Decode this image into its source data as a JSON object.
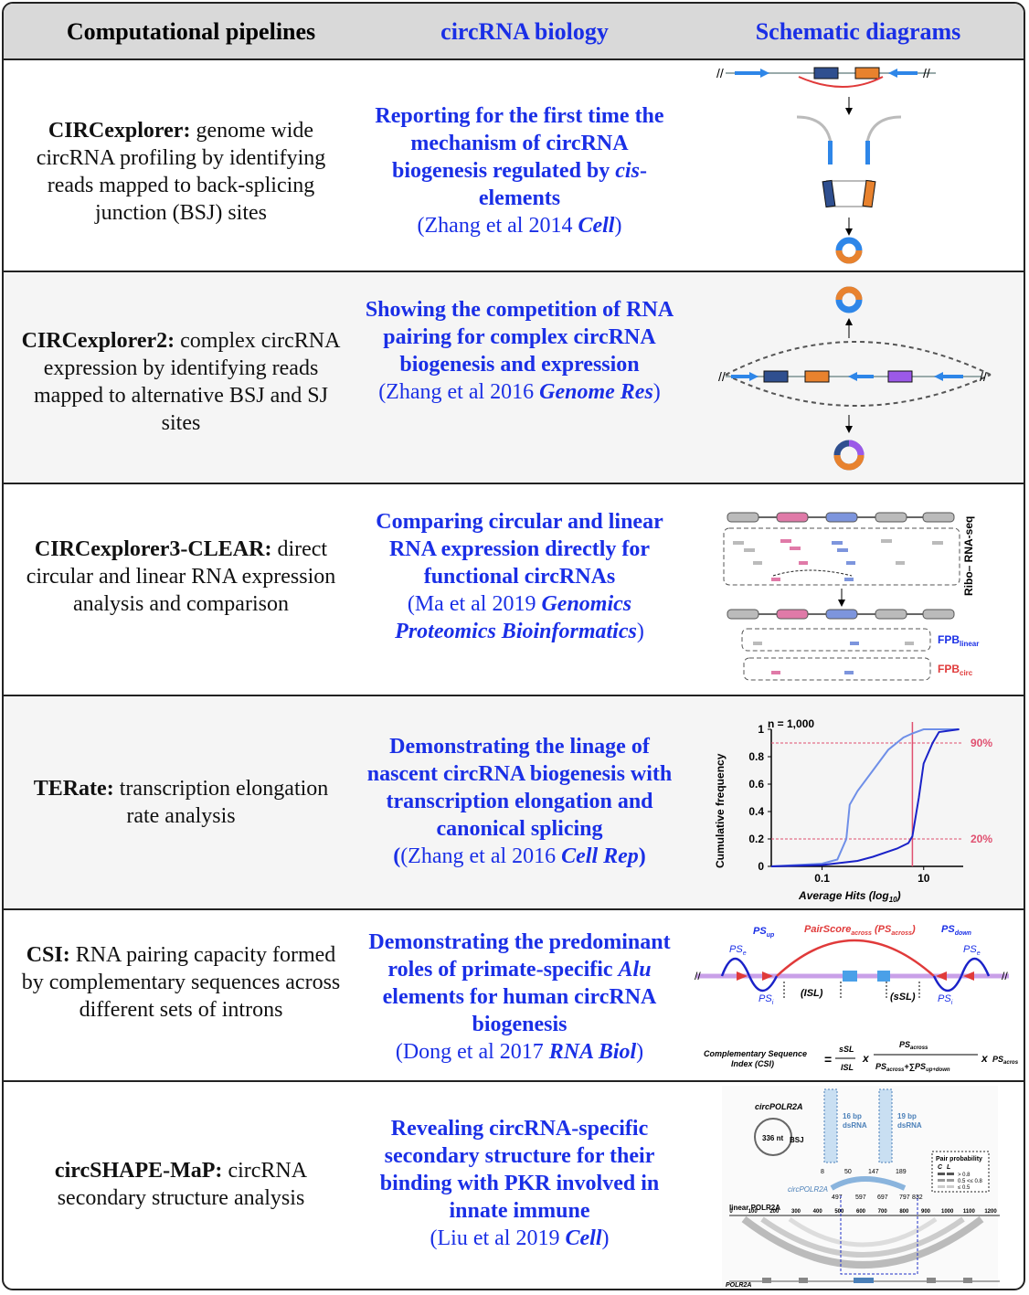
{
  "header": {
    "col1": "Computational pipelines",
    "col2": "circRNA biology",
    "col3": "Schematic diagrams"
  },
  "rows": [
    {
      "tool": "CIRCexplorer:",
      "desc": " genome wide circRNA profiling by identifying reads mapped to back-splicing junction (BSJ) sites",
      "finding_a": "Reporting for the first time the mechanism of circRNA biogenesis regulated by ",
      "finding_em": "cis",
      "finding_b": "-elements",
      "ref_a": "(Zhang et al 2014 ",
      "ref_journal": "Cell",
      "ref_b": ")"
    },
    {
      "tool": "CIRCexplorer2:",
      "desc": " complex circRNA expression by identifying reads mapped to alternative BSJ and SJ sites",
      "finding_a": "Showing the competition of RNA pairing for complex circRNA biogenesis and expression",
      "ref_a": "(Zhang et al 2016 ",
      "ref_journal": "Genome Res",
      "ref_b": ")"
    },
    {
      "tool": "CIRCexplorer3-CLEAR:",
      "desc": " direct circular and linear RNA expression analysis and comparison",
      "finding_a": "Comparing circular and linear RNA expression directly for functional circRNAs",
      "ref_a": "(Ma et al 2019 ",
      "ref_journal": "Genomics Proteomics Bioinformatics",
      "ref_b": ")"
    },
    {
      "tool": "TERate:",
      "desc": " transcription elongation rate analysis",
      "finding_a": "Demonstrating the linage of nascent circRNA biogenesis with transcription elongation and canonical splicing",
      "ref_a": "(Zhang et al 2016 ",
      "ref_journal": "Cell Rep",
      "ref_b": ")"
    },
    {
      "tool": "CSI:",
      "desc": " RNA pairing capacity formed by complementary sequences across different sets of introns",
      "finding_a": "Demonstrating the predominant roles of primate-specific ",
      "finding_em": "Alu",
      "finding_b": " elements for human circRNA biogenesis",
      "ref_a": "(Dong et al 2017 ",
      "ref_journal": "RNA Biol",
      "ref_b": ")"
    },
    {
      "tool": "circSHAPE-MaP:",
      "desc": " circRNA secondary structure analysis",
      "finding_a": "Revealing circRNA-specific secondary structure for their binding with PKR involved in innate immune",
      "ref_a": "(Liu et al 2019 ",
      "ref_journal": "Cell",
      "ref_b": ")"
    }
  ],
  "diagrams": {
    "clear": {
      "side_label": "Ribo– RNA-seq",
      "fpb_linear": "FPB",
      "fpb_linear_sub": "linear",
      "fpb_circ": "FPB",
      "fpb_circ_sub": "circ"
    },
    "terate_chart": {
      "n_label": "n = 1,000",
      "pct_high": "90%",
      "pct_low": "20%"
    },
    "csi": {
      "ps_up": "PS",
      "ps_up_sub": "up",
      "ps_across": "PairScore",
      "ps_across_sub": "across",
      "ps_across_b": " (PS",
      "ps_across_b_sub": "across",
      "ps_across_c": ")",
      "ps_down": "PS",
      "ps_down_sub": "down",
      "ps_e": "PS",
      "ps_e_sub": "e",
      "ps_i": "PS",
      "ps_i_sub": "i",
      "isl": "(ISL)",
      "ssl": "(sSL)",
      "formula_lhs1": "Complementary Sequence",
      "formula_lhs2": "Index (CSI)",
      "eq": "=",
      "ssl_num": "sSL",
      "isl_den": "ISL",
      "times": "x",
      "ps_num": "PS",
      "ps_num_sub": "across",
      "ps_den": "PS",
      "ps_den_sub": "across",
      "ps_den_b": "+∑PS",
      "ps_den_b_sub": "up+down",
      "ps_tail": "PS",
      "ps_tail_sub": "across"
    },
    "shape": {
      "circ_name": "circPOLR2A",
      "circ_len": "336 nt",
      "bsj": "BSJ",
      "ds16": "16 bp",
      "ds16b": "dsRNA",
      "ds19": "19 bp",
      "ds19b": "dsRNA",
      "circ_label": "circPOLR2A",
      "linear_label": "linear POLR2A",
      "gene_label": "POLR2A",
      "pp_title": "Pair probability",
      "pp_c": "C",
      "pp_l": "L",
      "pp1": "> 0.8",
      "pp2": "0.5 <&le; 0.8",
      "pp3": "≤ 0.5",
      "top_ticks": [
        "8",
        "50",
        "147",
        "189"
      ],
      "mid_ticks": [
        "497",
        "597",
        "697",
        "797",
        "832"
      ],
      "axis_ticks": [
        "0",
        "100",
        "200",
        "300",
        "400",
        "500",
        "600",
        "700",
        "800",
        "900",
        "1000",
        "1100",
        "1200"
      ]
    }
  },
  "chart_data": {
    "type": "line",
    "xlabel": "Average Hits (log10)",
    "ylabel": "Cumulative frequency",
    "x_scale": "log",
    "x_ticks": [
      "0.1",
      "10"
    ],
    "y_ticks": [
      "0",
      "0.2",
      "0.4",
      "0.6",
      "0.8",
      "1"
    ],
    "ylim": [
      0,
      1
    ],
    "annotations": [
      "n = 1,000",
      "90%",
      "20%"
    ],
    "series": [
      {
        "color": "#6f8fe8",
        "x": [
          0.01,
          0.1,
          0.2,
          0.3,
          0.35,
          0.5,
          1,
          2,
          4,
          6,
          10,
          20,
          50
        ],
        "y": [
          0,
          0.02,
          0.05,
          0.2,
          0.45,
          0.55,
          0.7,
          0.85,
          0.94,
          0.97,
          1,
          1,
          1
        ]
      },
      {
        "color": "#1a22c8",
        "x": [
          0.01,
          0.1,
          0.5,
          1,
          3,
          5,
          6,
          8,
          10,
          15,
          20,
          50
        ],
        "y": [
          0,
          0.01,
          0.04,
          0.07,
          0.13,
          0.17,
          0.22,
          0.5,
          0.75,
          0.9,
          0.98,
          1
        ]
      }
    ]
  },
  "colors": {
    "blue_text": "#1a2fe6",
    "red": "#e03a3a",
    "header_bg": "#d9d9d9",
    "pink": "#e05070"
  }
}
